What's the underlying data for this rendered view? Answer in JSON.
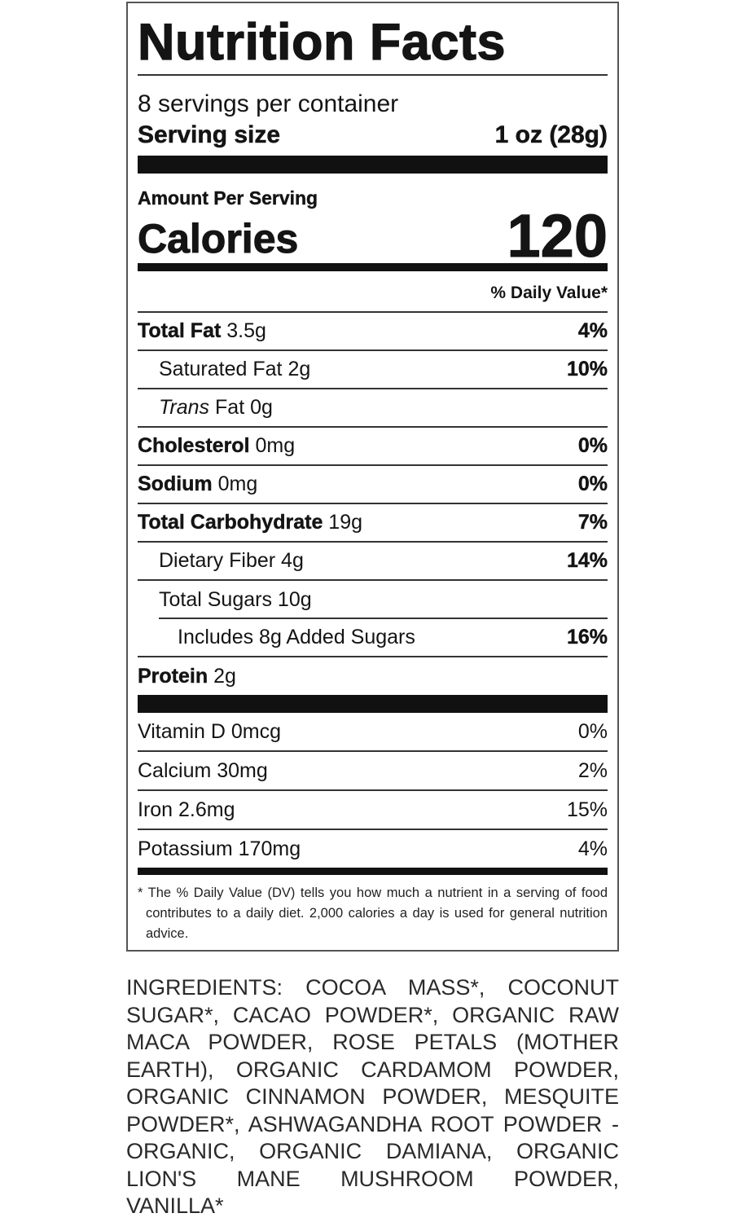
{
  "label": {
    "title": "Nutrition Facts",
    "servings_per_container": "8 servings per container",
    "serving_size_label": "Serving size",
    "serving_size_value": "1 oz (28g)",
    "amount_per_serving": "Amount Per Serving",
    "calories_label": "Calories",
    "calories_value": "120",
    "daily_value_header": "% Daily Value*",
    "nutrients": [
      {
        "name": "Total Fat",
        "amount": "3.5g",
        "dv": "4%"
      },
      {
        "name": "Saturated Fat",
        "amount": "2g",
        "dv": "10%"
      },
      {
        "name": "Trans",
        "name_suffix": "Fat",
        "amount": "0g",
        "dv": ""
      },
      {
        "name": "Cholesterol",
        "amount": "0mg",
        "dv": "0%"
      },
      {
        "name": "Sodium",
        "amount": "0mg",
        "dv": "0%"
      },
      {
        "name": "Total Carbohydrate",
        "amount": "19g",
        "dv": "7%"
      },
      {
        "name": "Dietary Fiber",
        "amount": "4g",
        "dv": "14%"
      },
      {
        "name": "Total Sugars",
        "amount": "10g",
        "dv": ""
      },
      {
        "name": "Includes 8g Added Sugars",
        "amount": "",
        "dv": "16%"
      },
      {
        "name": "Protein",
        "amount": "2g",
        "dv": ""
      }
    ],
    "vitamins": [
      {
        "name": "Vitamin D 0mcg",
        "dv": "0%"
      },
      {
        "name": "Calcium 30mg",
        "dv": "2%"
      },
      {
        "name": "Iron 2.6mg",
        "dv": "15%"
      },
      {
        "name": "Potassium 170mg",
        "dv": "4%"
      }
    ],
    "footnote": "* The % Daily Value (DV) tells you how much a nutrient in a serving of food contributes to a daily diet. 2,000 calories a day is used for general nutrition advice."
  },
  "ingredients": "INGREDIENTS: COCOA MASS*, COCONUT SUGAR*, CACAO POWDER*, ORGANIC RAW MACA POWDER, ROSE PETALS (MOTHER EARTH), ORGANIC CARDAMOM POWDER, ORGANIC CINNAMON POWDER, MESQUITE POWDER*, ASHWAGANDHA ROOT POWDER - ORGANIC, ORGANIC DAMIANA, ORGANIC LION'S MANE MUSHROOM POWDER, VANILLA*"
}
